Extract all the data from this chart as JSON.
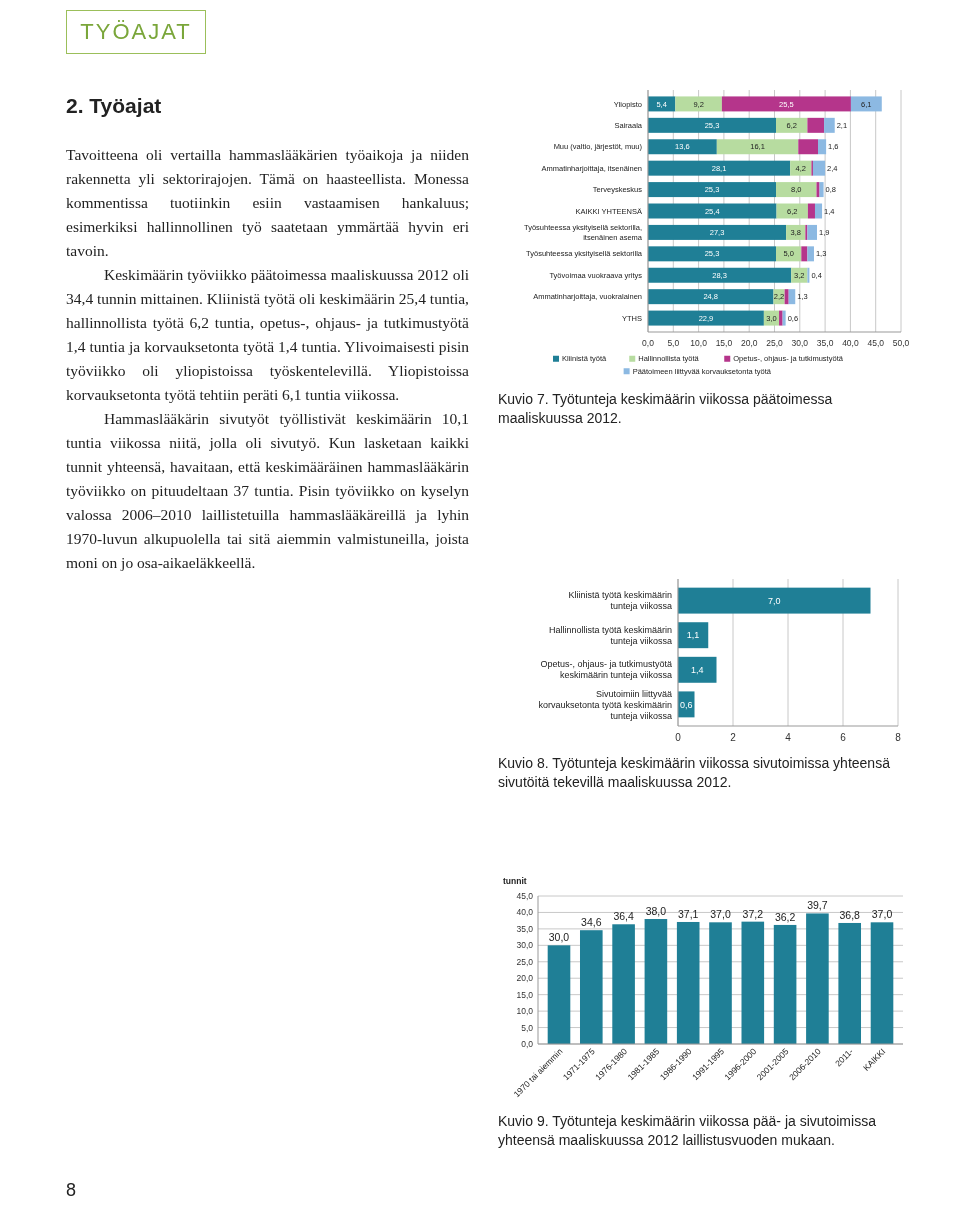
{
  "chart_data": [
    {
      "type": "other",
      "title": "TYÖAJAT",
      "subtitle": "2. Työajat",
      "annotations": [
        "Tavoitteena oli vertailla hammaslääkärien työaikoja ja niiden rakennetta yli sektorirajojen. Tämä on haasteellista. Monessa kommentissa tuotiinkin esiin vastaamisen hankaluus; esimerkiksi hallinnollinen työ saatetaan ymmärtää hyvin eri tavoin.",
        "Keskimäärin työviikko päätoimessa maaliskuussa 2012 oli 34,4 tunnin mittainen. Kliinistä työtä oli keskimäärin 25,4 tuntia, hallinnollista työtä 6,2 tuntia, opetus-, ohjaus- ja tutkimustyötä 1,4 tuntia ja korvauksetonta työtä 1,4 tuntia. Ylivoimaisesti pisin työviikko oli yliopistoissa työskentelevillä. Yliopistoissa korvauksetonta työtä tehtiin peräti 6,1 tuntia viikossa.",
        "Hammaslääkärin sivutyöt työllistivät keskimäärin 10,1 tuntia viikossa niitä, jolla oli sivutyö. Kun lasketaan kaikki tunnit yhteensä, havaitaan, että keskimääräinen hammaslääkärin työviikko on pituudeltaan 37 tuntia. Pisin työviikko on kyselyn valossa 2006–2010 laillistetuilla hammaslääkäreillä ja lyhin 1970-luvun alkupuolella tai sitä aiemmin valmistuneilla, joista moni on jo osa-aikaeläkkeellä.",
        "8"
      ]
    },
    {
      "type": "bar",
      "orientation": "horizontal",
      "stacked": true,
      "title": "Kuvio 7. Työtunteja keskimäärin viikossa päätoimessa maaliskuussa 2012.",
      "categories": [
        "Yliopisto",
        "Sairaala",
        "Muu (valtio, järjestöt, muu)",
        "Ammatinharjoittaja, itsenäinen",
        "Terveyskeskus",
        "KAIKKI YHTEENSÄ",
        "Työsuhteessa yksityisellä sektorilla, itsenäinen asema",
        "Työsuhteessa yksityisellä sektorilla",
        "Työvoimaa vuokraava yritys",
        "Ammatinharjoittaja, vuokralainen",
        "YTHS"
      ],
      "xlim": [
        0,
        50
      ],
      "xticks": [
        {
          "value": 0,
          "label": "0,0"
        },
        {
          "value": 5,
          "label": "5,0"
        },
        {
          "value": 10,
          "label": "10,0"
        },
        {
          "value": 15,
          "label": "15,0"
        },
        {
          "value": 20,
          "label": "20,0"
        },
        {
          "value": 25,
          "label": "25,0"
        },
        {
          "value": 30,
          "label": "30,0"
        },
        {
          "value": 35,
          "label": "35,0"
        },
        {
          "value": 40,
          "label": "40,0"
        },
        {
          "value": 45,
          "label": "45,0"
        },
        {
          "value": 50,
          "label": "50,0"
        }
      ],
      "grid": "x",
      "legend": "bottom",
      "series": [
        {
          "name": "Kliinistä työtä",
          "color": "#1f7f96",
          "values": [
            5.4,
            25.3,
            13.6,
            28.1,
            25.3,
            25.4,
            27.3,
            25.3,
            28.3,
            24.8,
            22.9
          ],
          "value_labels": [
            "5,4",
            "25,3",
            "13,6",
            "28,1",
            "25,3",
            "25,4",
            "27,3",
            "25,3",
            "28,3",
            "24,8",
            "22,9"
          ]
        },
        {
          "name": "Hallinnollista työtä",
          "color": "#b7dca0",
          "values": [
            9.2,
            6.2,
            16.1,
            4.2,
            8.0,
            6.2,
            3.8,
            5.0,
            3.2,
            2.2,
            3.0
          ],
          "value_labels": [
            "9,2",
            "6,2",
            "16,1",
            "4,2",
            "8,0",
            "6,2",
            "3,8",
            "5,0",
            "3,2",
            "2,2",
            "3,0"
          ]
        },
        {
          "name": "Opetus-, ohjaus- ja tutkimustyötä",
          "color": "#b5358b",
          "values": [
            25.5,
            3.3,
            3.9,
            0.3,
            0.6,
            1.4,
            0.4,
            1.2,
            0,
            0.8,
            0.7
          ],
          "value_labels": [
            "25,5",
            null,
            null,
            null,
            null,
            null,
            null,
            null,
            null,
            null,
            null
          ]
        },
        {
          "name": "Päätoimeen liittyvää korvauksetonta työtä",
          "color": "#8cb9e2",
          "values": [
            6.1,
            2.1,
            1.6,
            2.4,
            0.8,
            1.4,
            1.9,
            1.3,
            0.4,
            1.3,
            0.6
          ],
          "value_labels": [
            "6,1",
            "2,1",
            "1,6",
            "2,4",
            "0,8",
            "1,4",
            "1,9",
            "1,3",
            "0,4",
            "1,3",
            "0,6"
          ]
        }
      ]
    },
    {
      "type": "bar",
      "orientation": "horizontal",
      "title": "Kuvio 8. Työtunteja keskimäärin viikossa sivutoimissa yhteensä sivutöitä tekevillä maaliskuussa 2012.",
      "categories": [
        "Kliinistä työtä keskimäärin tunteja viikossa",
        "Hallinnollista työtä keskimäärin tunteja viikossa",
        "Opetus-, ohjaus- ja tutkimustyötä keskimäärin tunteja viikossa",
        "Sivutoimiin liittyvää korvauksetonta työtä keskimäärin tunteja viikossa"
      ],
      "values": [
        7.0,
        1.1,
        1.4,
        0.6
      ],
      "value_labels": [
        "7,0",
        "1,1",
        "1,4",
        "0,6"
      ],
      "color": "#1f7f96",
      "xlim": [
        0,
        8
      ],
      "xticks": [
        0,
        2,
        4,
        6,
        8
      ],
      "grid": "x"
    },
    {
      "type": "bar",
      "title": "Kuvio 9. Työtunteja keskimäärin viikossa pää- ja sivutoimissa yhteensä maaliskuussa 2012 laillistusvuoden mukaan.",
      "ylabel": "tunnit",
      "categories": [
        "1970 tai aiemmin",
        "1971-1975",
        "1976-1980",
        "1981-1985",
        "1986-1990",
        "1991-1995",
        "1996-2000",
        "2001-2005",
        "2006-2010",
        "2011-",
        "KAIKKI"
      ],
      "values": [
        30.0,
        34.6,
        36.4,
        38.0,
        37.1,
        37.0,
        37.2,
        36.2,
        39.7,
        36.8,
        37.0
      ],
      "value_labels": [
        "30,0",
        "34,6",
        "36,4",
        "38,0",
        "37,1",
        "37,0",
        "37,2",
        "36,2",
        "39,7",
        "36,8",
        "37,0"
      ],
      "color": "#1f7f96",
      "ylim": [
        0,
        45
      ],
      "yticks": [
        {
          "value": 0,
          "label": "0,0"
        },
        {
          "value": 5,
          "label": "5,0"
        },
        {
          "value": 10,
          "label": "10,0"
        },
        {
          "value": 15,
          "label": "15,0"
        },
        {
          "value": 20,
          "label": "20,0"
        },
        {
          "value": 25,
          "label": "25,0"
        },
        {
          "value": 30,
          "label": "30,0"
        },
        {
          "value": 35,
          "label": "35,0"
        },
        {
          "value": 40,
          "label": "40,0"
        },
        {
          "value": 45,
          "label": "45,0"
        }
      ],
      "grid": "y"
    }
  ]
}
